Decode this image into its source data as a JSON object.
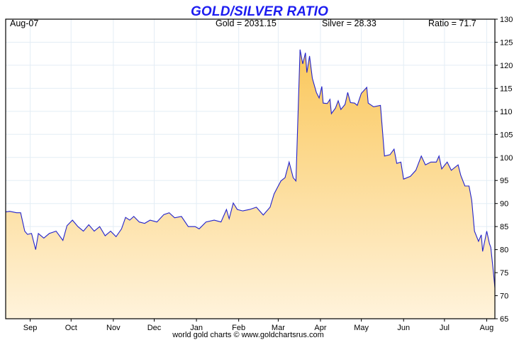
{
  "chart_data": {
    "type": "area",
    "title": "GOLD/SILVER RATIO",
    "header": {
      "date": "Aug-07",
      "gold": "Gold = 2031.15",
      "silver": "Silver = 28.33",
      "ratio": "Ratio = 71.7"
    },
    "footer": "world gold charts © www.goldchartsrus.com",
    "ylim": [
      65,
      130
    ],
    "yticks": [
      65,
      70,
      75,
      80,
      85,
      90,
      95,
      100,
      105,
      110,
      115,
      120,
      125,
      130
    ],
    "xlim": [
      "2019-08-14",
      "2020-08-07"
    ],
    "xticks": [
      {
        "label": "Sep",
        "date": "2019-09-01"
      },
      {
        "label": "Oct",
        "date": "2019-10-01"
      },
      {
        "label": "Nov",
        "date": "2019-11-01"
      },
      {
        "label": "Dec",
        "date": "2019-12-01"
      },
      {
        "label": "Jan",
        "date": "2020-01-01"
      },
      {
        "label": "Feb",
        "date": "2020-02-01"
      },
      {
        "label": "Mar",
        "date": "2020-03-01"
      },
      {
        "label": "Apr",
        "date": "2020-04-01"
      },
      {
        "label": "May",
        "date": "2020-05-01"
      },
      {
        "label": "Jun",
        "date": "2020-06-01"
      },
      {
        "label": "Jul",
        "date": "2020-07-01"
      },
      {
        "label": "Aug",
        "date": "2020-08-01"
      }
    ],
    "grid": true,
    "colors": {
      "line": "#2222cc",
      "fill_top": "#fac75a",
      "fill_bottom": "#fff3dc",
      "grid": "#e3edf5",
      "title": "#1c1cf0"
    },
    "x": [
      "2019-08-14",
      "2019-08-17",
      "2019-08-22",
      "2019-08-25",
      "2019-08-28",
      "2019-08-30",
      "2019-09-02",
      "2019-09-05",
      "2019-09-07",
      "2019-09-11",
      "2019-09-15",
      "2019-09-20",
      "2019-09-25",
      "2019-09-28",
      "2019-10-02",
      "2019-10-06",
      "2019-10-10",
      "2019-10-14",
      "2019-10-18",
      "2019-10-22",
      "2019-10-26",
      "2019-10-30",
      "2019-11-03",
      "2019-11-07",
      "2019-11-10",
      "2019-11-13",
      "2019-11-16",
      "2019-11-20",
      "2019-11-24",
      "2019-11-28",
      "2019-12-03",
      "2019-12-08",
      "2019-12-12",
      "2019-12-16",
      "2019-12-21",
      "2019-12-26",
      "2019-12-31",
      "2020-01-03",
      "2020-01-08",
      "2020-01-14",
      "2020-01-19",
      "2020-01-23",
      "2020-01-25",
      "2020-01-28",
      "2020-01-31",
      "2020-02-04",
      "2020-02-09",
      "2020-02-14",
      "2020-02-19",
      "2020-02-24",
      "2020-02-27",
      "2020-03-03",
      "2020-03-06",
      "2020-03-09",
      "2020-03-12",
      "2020-03-14",
      "2020-03-17",
      "2020-03-19",
      "2020-03-21",
      "2020-03-22",
      "2020-03-24",
      "2020-03-26",
      "2020-03-29",
      "2020-03-31",
      "2020-04-02",
      "2020-04-03",
      "2020-04-06",
      "2020-04-08",
      "2020-04-09",
      "2020-04-12",
      "2020-04-14",
      "2020-04-16",
      "2020-04-19",
      "2020-04-21",
      "2020-04-23",
      "2020-04-26",
      "2020-04-28",
      "2020-05-01",
      "2020-05-05",
      "2020-05-06",
      "2020-05-10",
      "2020-05-15",
      "2020-05-18",
      "2020-05-22",
      "2020-05-25",
      "2020-05-27",
      "2020-05-30",
      "2020-06-01",
      "2020-06-06",
      "2020-06-10",
      "2020-06-14",
      "2020-06-17",
      "2020-06-21",
      "2020-06-25",
      "2020-06-27",
      "2020-06-29",
      "2020-07-03",
      "2020-07-06",
      "2020-07-11",
      "2020-07-13",
      "2020-07-16",
      "2020-07-19",
      "2020-07-21",
      "2020-07-23",
      "2020-07-26",
      "2020-07-28",
      "2020-07-29",
      "2020-08-01",
      "2020-08-03",
      "2020-08-04",
      "2020-08-06",
      "2020-08-07"
    ],
    "values": [
      88.2,
      88.3,
      88.0,
      88.0,
      84.0,
      83.3,
      83.5,
      80.0,
      83.5,
      82.5,
      83.5,
      84.0,
      82.0,
      85.2,
      86.4,
      85.0,
      84.0,
      85.4,
      84.0,
      85.0,
      83.0,
      84.0,
      82.8,
      84.5,
      87.0,
      86.4,
      87.2,
      86.0,
      85.7,
      86.4,
      86.0,
      87.6,
      88.0,
      86.9,
      87.2,
      85.0,
      85.0,
      84.5,
      86.0,
      86.4,
      86.0,
      88.7,
      86.7,
      90.1,
      88.7,
      88.4,
      88.7,
      89.2,
      87.5,
      89.2,
      92.1,
      94.9,
      95.6,
      99.0,
      95.6,
      94.9,
      123.4,
      120.3,
      122.7,
      118.4,
      122.0,
      117.2,
      114.1,
      112.9,
      115.4,
      111.8,
      111.7,
      112.6,
      109.5,
      110.7,
      112.3,
      110.4,
      111.5,
      114.1,
      111.9,
      111.8,
      111.3,
      113.9,
      115.2,
      111.8,
      111.0,
      111.3,
      100.3,
      100.6,
      101.8,
      98.7,
      99.0,
      95.3,
      95.9,
      97.2,
      100.3,
      98.4,
      99.0,
      99.0,
      100.3,
      97.5,
      99.0,
      97.2,
      98.4,
      96.1,
      93.8,
      93.8,
      90.7,
      84.0,
      81.8,
      83.2,
      79.6,
      84.0,
      81.3,
      80.5,
      74.8,
      71.7
    ]
  }
}
